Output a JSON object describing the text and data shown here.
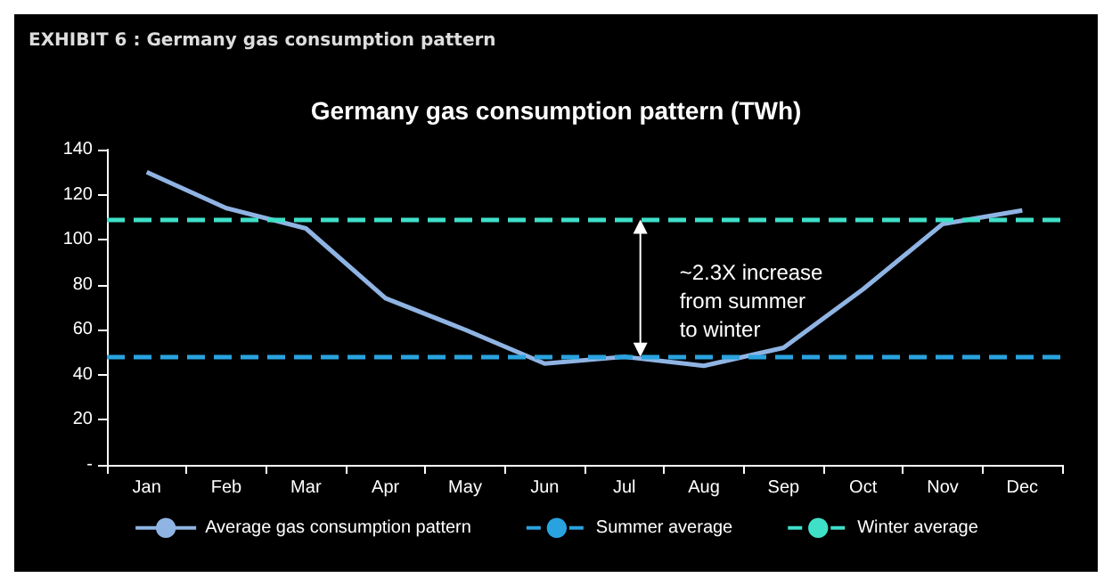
{
  "chart_data": {
    "type": "line",
    "title": "Germany gas consumption pattern (TWh)",
    "annotations": [
      "EXHIBIT 6 : Germany gas consumption pattern",
      "~2.3X increase\nfrom summer\nto winter"
    ],
    "categories": [
      "Jan",
      "Feb",
      "Mar",
      "Apr",
      "May",
      "Jun",
      "Jul",
      "Aug",
      "Sep",
      "Oct",
      "Nov",
      "Dec"
    ],
    "series": [
      {
        "name": "Average gas consumption pattern",
        "color": "#8fb4e3",
        "values": [
          130,
          114,
          105,
          74,
          60,
          45,
          48,
          44,
          52,
          78,
          107,
          113
        ]
      }
    ],
    "ref_lines": [
      {
        "axis": "y",
        "value": 48,
        "label": "Summer average",
        "color": "#29a3e0",
        "line_style": "dashed"
      },
      {
        "axis": "y",
        "value": 109,
        "label": "Winter average",
        "color": "#3ee0c8",
        "line_style": "dashed"
      }
    ],
    "ylim": [
      0,
      140
    ],
    "yticks": [
      {
        "value": 0,
        "label": "-"
      },
      20,
      40,
      60,
      80,
      100,
      120,
      140
    ],
    "grid": false,
    "legend": "bottom",
    "marker": "none",
    "line_style": "solid"
  }
}
